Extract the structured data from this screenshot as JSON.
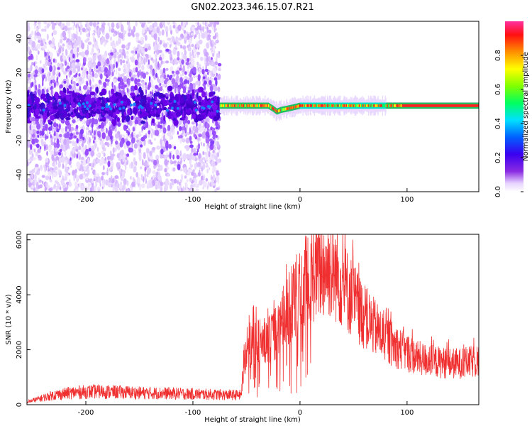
{
  "title": "GN02.2023.346.15.07.R21",
  "chart_data": [
    {
      "type": "heatmap",
      "xlabel": "Height of straight line (km)",
      "ylabel": "Frequency (Hz)",
      "xlim": [
        -255,
        167
      ],
      "ylim": [
        -50,
        50
      ],
      "xticks": [
        "-200",
        "-100",
        "0",
        "100"
      ],
      "xtick_values": [
        -200,
        -100,
        0,
        100
      ],
      "yticks": [
        "-40",
        "-20",
        "0",
        "20",
        "40"
      ],
      "ytick_values": [
        -40,
        -20,
        0,
        20,
        40
      ],
      "noise_region_end_km": -75,
      "line_trace": [
        {
          "x": -75,
          "y": 0.5
        },
        {
          "x": -50,
          "y": 0.5
        },
        {
          "x": -30,
          "y": 0.5
        },
        {
          "x": -25,
          "y": -1.5
        },
        {
          "x": -22,
          "y": -3
        },
        {
          "x": -18,
          "y": -2
        },
        {
          "x": -10,
          "y": -1
        },
        {
          "x": 0,
          "y": 0.5
        },
        {
          "x": 100,
          "y": 0.5
        },
        {
          "x": 167,
          "y": 0.5
        }
      ],
      "colorbar": {
        "label": "Normalized spectral amplitude",
        "ticks": [
          "0.0",
          "0.2",
          "0.4",
          "0.6",
          "0.8"
        ],
        "tick_values": [
          0.0,
          0.2,
          0.4,
          0.6,
          0.8
        ],
        "range": [
          0,
          1
        ]
      }
    },
    {
      "type": "line",
      "xlabel": "Height of straight line (km)",
      "ylabel": "SNR (10 * v/v)",
      "xlim": [
        -255,
        167
      ],
      "ylim": [
        0,
        6200
      ],
      "xticks": [
        "-200",
        "-100",
        "0",
        "100"
      ],
      "xtick_values": [
        -200,
        -100,
        0,
        100
      ],
      "yticks": [
        "0",
        "2000",
        "4000",
        "6000"
      ],
      "ytick_values": [
        0,
        2000,
        4000,
        6000
      ],
      "color": "#f03030",
      "envelope": {
        "x": [
          -255,
          -245,
          -230,
          -210,
          -190,
          -170,
          -150,
          -130,
          -110,
          -90,
          -70,
          -55,
          -52,
          -45,
          -40,
          -35,
          -30,
          -25,
          -20,
          -15,
          -10,
          -5,
          0,
          5,
          10,
          15,
          20,
          25,
          30,
          35,
          40,
          45,
          50,
          55,
          60,
          70,
          80,
          90,
          100,
          110,
          120,
          130,
          140,
          150,
          160,
          167
        ],
        "y": [
          100,
          200,
          350,
          450,
          480,
          460,
          430,
          420,
          400,
          380,
          360,
          350,
          1600,
          2300,
          2300,
          2200,
          2300,
          2500,
          2700,
          3200,
          3500,
          3900,
          4200,
          4500,
          4700,
          4800,
          4900,
          5000,
          4900,
          4700,
          4400,
          4100,
          3800,
          3500,
          3200,
          2800,
          2400,
          2100,
          1900,
          1700,
          1600,
          1550,
          1500,
          1500,
          1550,
          1600
        ]
      }
    }
  ]
}
